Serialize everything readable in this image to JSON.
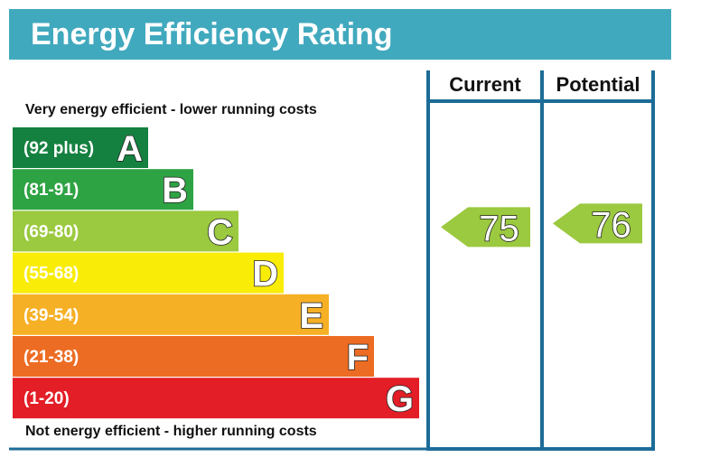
{
  "title": "Energy Efficiency Rating",
  "top_caption": "Very energy efficient - lower running costs",
  "bottom_caption": "Not energy efficient - higher running costs",
  "columns": {
    "current": "Current",
    "potential": "Potential"
  },
  "chart_data": {
    "type": "bar",
    "title": "Energy Efficiency Rating",
    "bands": [
      {
        "range": "(92 plus)",
        "letter": "A",
        "color": "#158140"
      },
      {
        "range": "(81-91)",
        "letter": "B",
        "color": "#2ea343"
      },
      {
        "range": "(69-80)",
        "letter": "C",
        "color": "#9bc93f"
      },
      {
        "range": "(55-68)",
        "letter": "D",
        "color": "#f9ec07"
      },
      {
        "range": "(39-54)",
        "letter": "E",
        "color": "#f6b025"
      },
      {
        "range": "(21-38)",
        "letter": "F",
        "color": "#ed6c23"
      },
      {
        "range": "(1-20)",
        "letter": "G",
        "color": "#e31e26"
      }
    ],
    "current": {
      "value": "75",
      "band": "C",
      "color": "#9bc93f"
    },
    "potential": {
      "value": "76",
      "band": "C",
      "color": "#9bc93f"
    }
  },
  "colors": {
    "header": "#41a9be",
    "frame": "#1d6c98"
  }
}
